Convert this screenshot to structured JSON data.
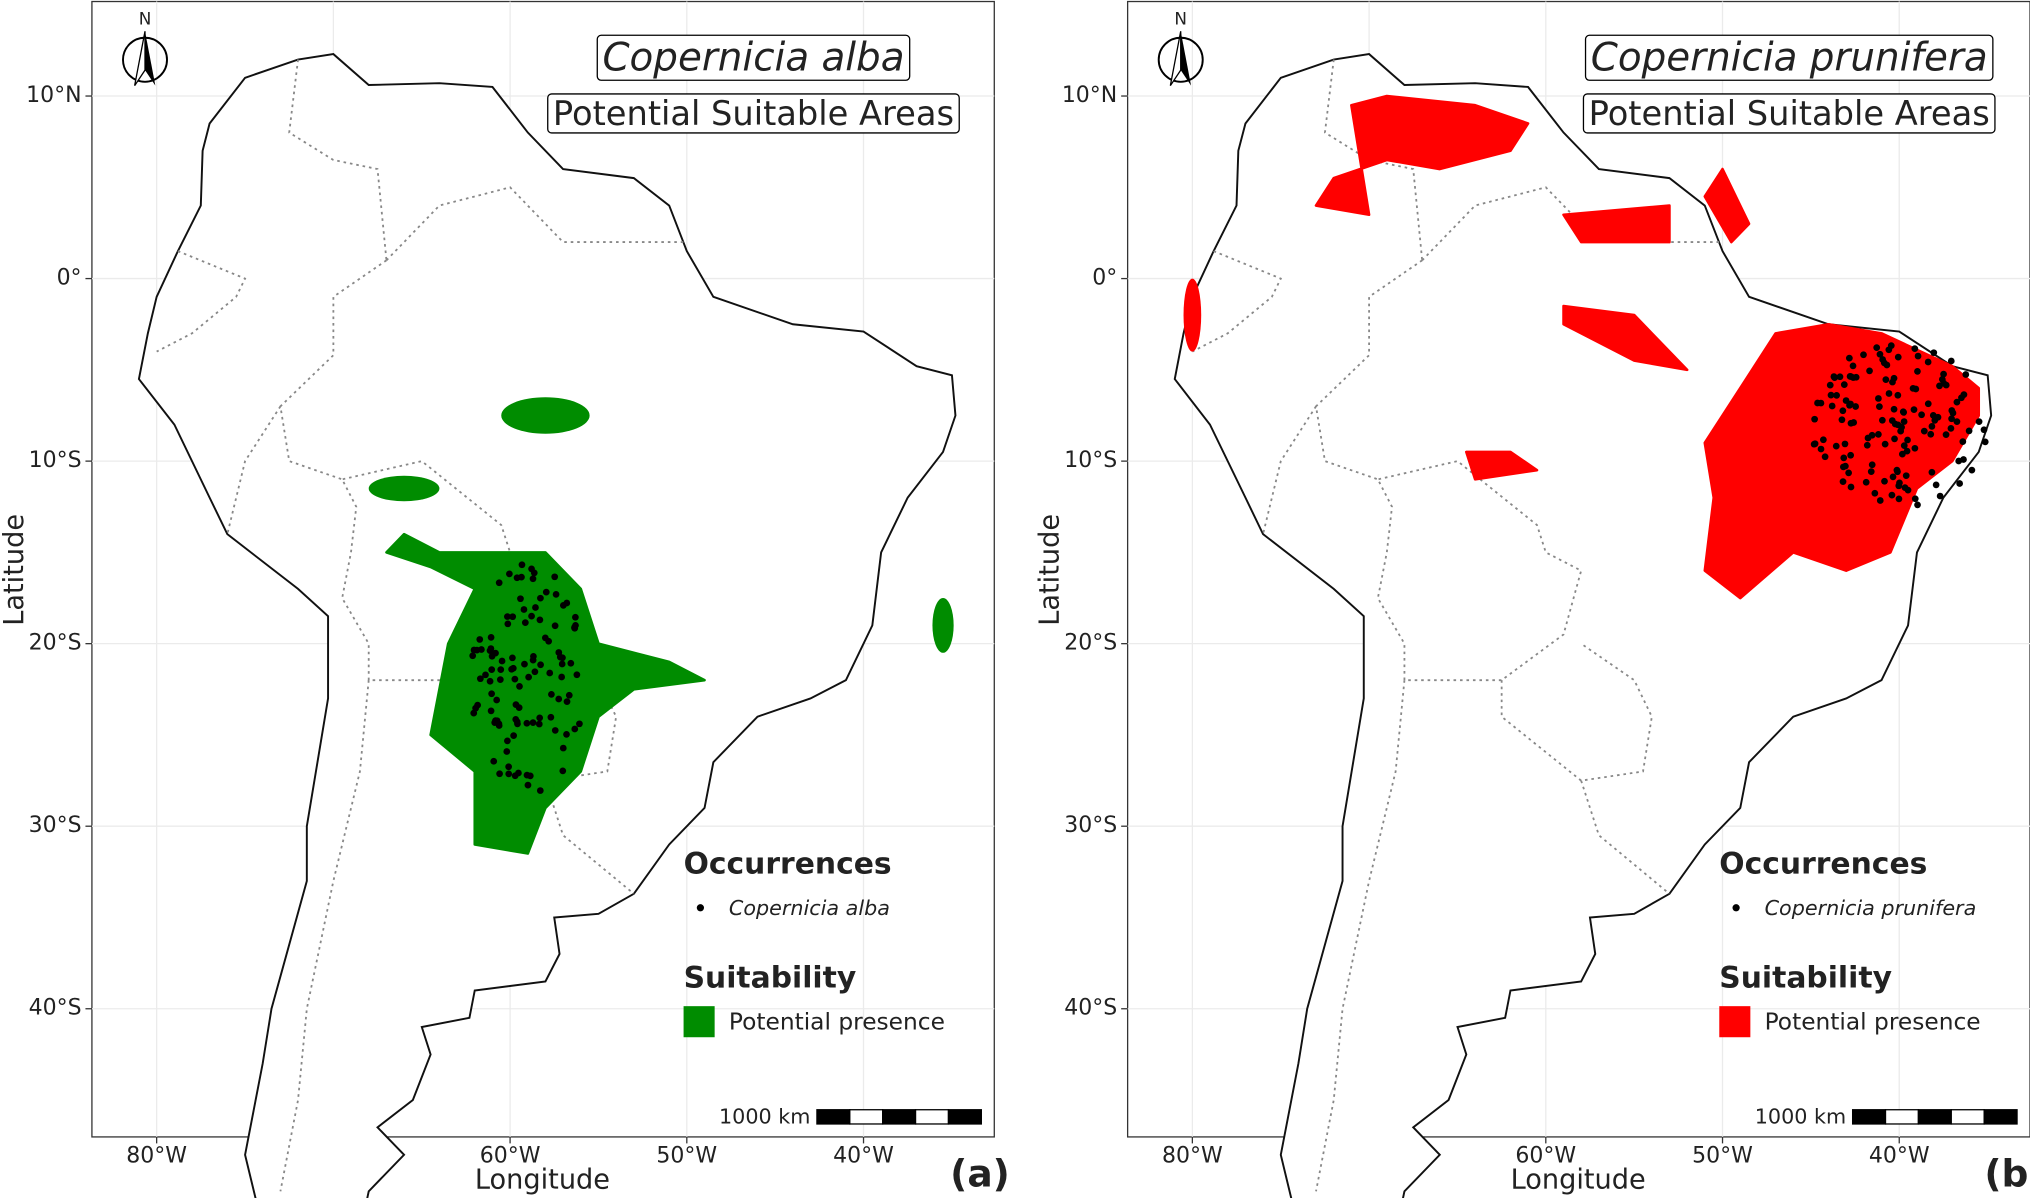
{
  "panels": [
    {
      "title": "Copernicia alba",
      "subtitle": "Potential Suitable Areas",
      "north_label": "N",
      "x_axis_label": "Longitude",
      "y_axis_label": "Latitude",
      "lat_ticks": [
        "10°N",
        "0°",
        "10°S",
        "20°S",
        "30°S",
        "40°S"
      ],
      "lon_ticks": [
        "80°W",
        "70°W",
        "60°W",
        "50°W",
        "40°W"
      ],
      "legend": {
        "occurrences_title": "Occurrences",
        "occurrence_label": "Copernicia alba",
        "suitability_title": "Suitability",
        "suitability_label": "Potential presence",
        "color": "#008c00"
      },
      "scale_bar_label": "1000 km",
      "panel_label": "(a)"
    },
    {
      "title": "Copernicia prunifera",
      "subtitle": "Potential Suitable Areas",
      "north_label": "N",
      "x_axis_label": "Longitude",
      "y_axis_label": "Latitude",
      "lat_ticks": [
        "10°N",
        "0°",
        "10°S",
        "20°S",
        "30°S",
        "40°S"
      ],
      "lon_ticks": [
        "80°W",
        "70°W",
        "60°W",
        "50°W",
        "40°W"
      ],
      "legend": {
        "occurrences_title": "Occurrences",
        "occurrence_label": "Copernicia prunifera",
        "suitability_title": "Suitability",
        "suitability_label": "Potential presence",
        "color": "#ff0000"
      },
      "scale_bar_label": "1000 km",
      "panel_label": "(b)"
    }
  ]
}
